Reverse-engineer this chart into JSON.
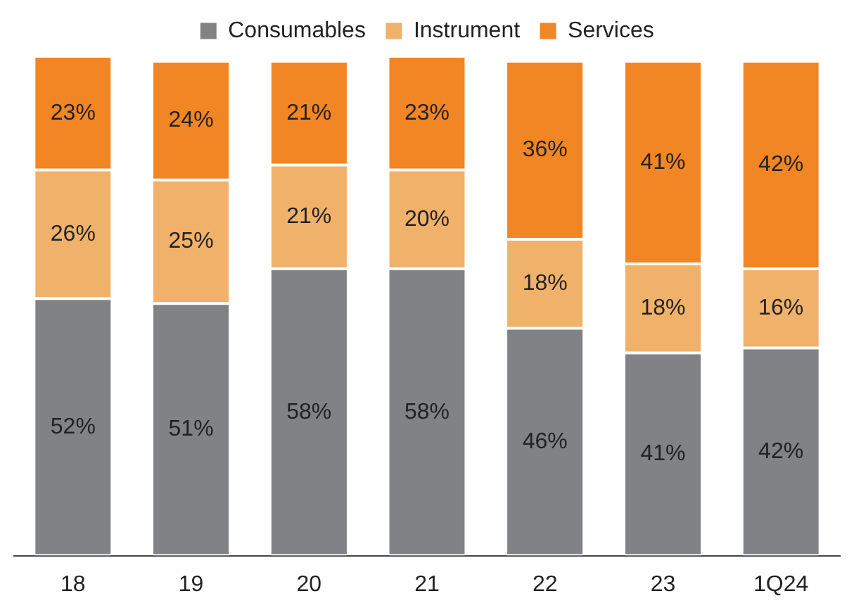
{
  "chart_data": {
    "type": "bar",
    "stacked": true,
    "legend": "top",
    "grid": false,
    "categories": [
      "18",
      "19",
      "20",
      "21",
      "22",
      "23",
      "1Q24"
    ],
    "series": [
      {
        "name": "Consumables",
        "color": "#808285",
        "values": [
          52,
          51,
          58,
          58,
          46,
          41,
          42
        ],
        "value_labels": [
          "52%",
          "51%",
          "58%",
          "58%",
          "46%",
          "41%",
          "42%"
        ]
      },
      {
        "name": "Instrument",
        "color": "#f0b16a",
        "values": [
          26,
          25,
          21,
          20,
          18,
          18,
          16
        ],
        "value_labels": [
          "26%",
          "25%",
          "21%",
          "20%",
          "18%",
          "18%",
          "16%"
        ]
      },
      {
        "name": "Services",
        "color": "#f28524",
        "values": [
          23,
          24,
          21,
          23,
          36,
          41,
          42
        ],
        "value_labels": [
          "23%",
          "24%",
          "21%",
          "23%",
          "36%",
          "41%",
          "42%"
        ]
      }
    ]
  }
}
